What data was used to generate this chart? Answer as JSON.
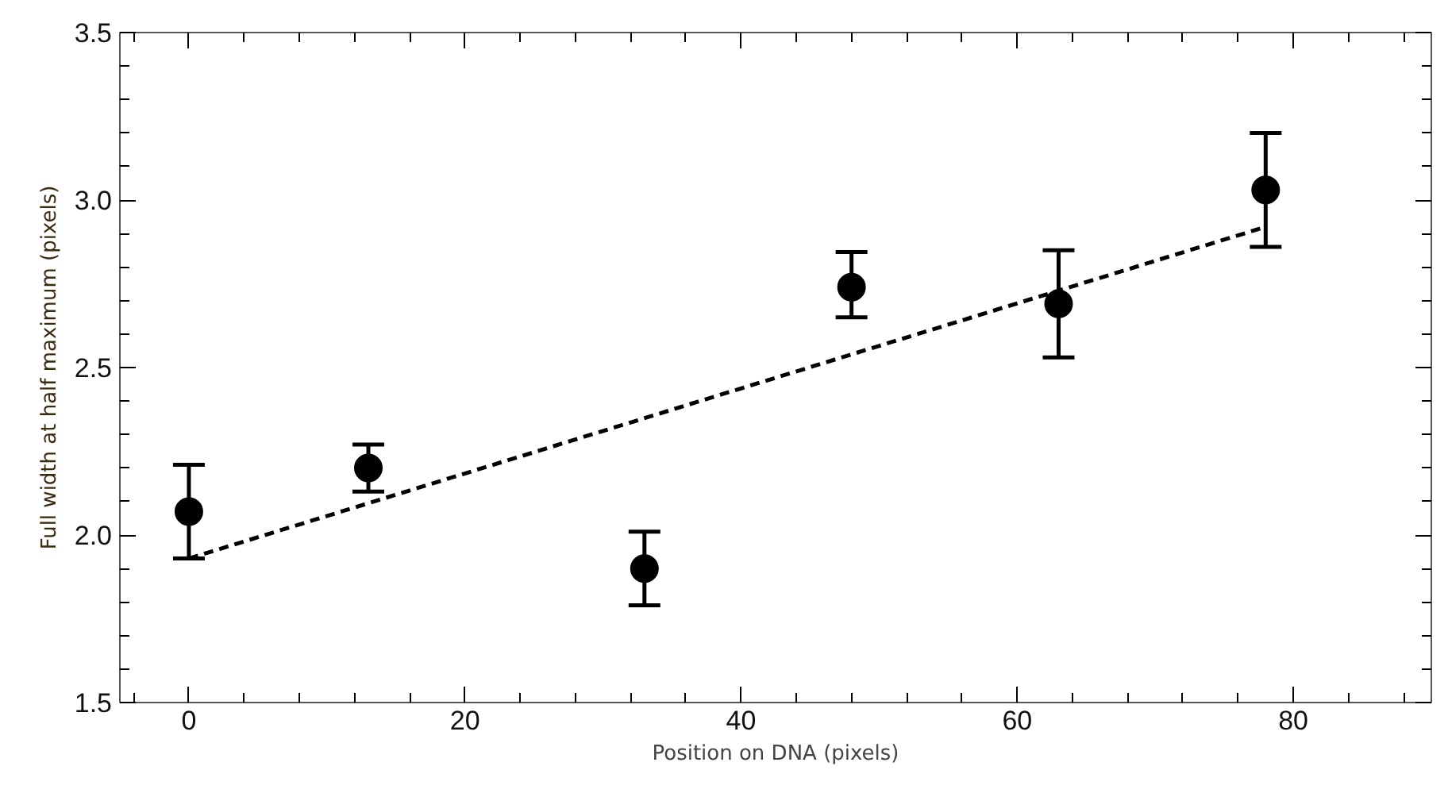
{
  "chart_data": {
    "type": "scatter",
    "xlabel": "Position on DNA (pixels)",
    "ylabel": "Full width at half maximum (pixels)",
    "xlim": [
      -5,
      90
    ],
    "ylim": [
      1.5,
      3.5
    ],
    "xticks": [
      0,
      20,
      40,
      60,
      80
    ],
    "yticks": [
      1.5,
      {
        "value": 2,
        "label": "2.0"
      },
      2.5,
      {
        "value": 3,
        "label": "3.0"
      },
      3.5
    ],
    "grid": false,
    "series": [
      {
        "marker": "circle",
        "color": "#000000",
        "x": [
          0,
          13,
          33,
          48,
          63,
          78
        ],
        "values": [
          2.07,
          2.2,
          1.9,
          2.74,
          2.69,
          3.03
        ],
        "errors": [
          [
            1.93,
            2.21
          ],
          [
            2.13,
            2.27
          ],
          [
            1.79,
            2.01
          ],
          [
            2.65,
            2.845
          ],
          [
            2.53,
            2.85
          ],
          [
            2.86,
            3.2
          ]
        ]
      },
      {
        "type": "line",
        "color": "#000000",
        "line_style": "dashed",
        "x": [
          0,
          78
        ],
        "values": [
          1.93,
          2.92
        ]
      }
    ]
  }
}
